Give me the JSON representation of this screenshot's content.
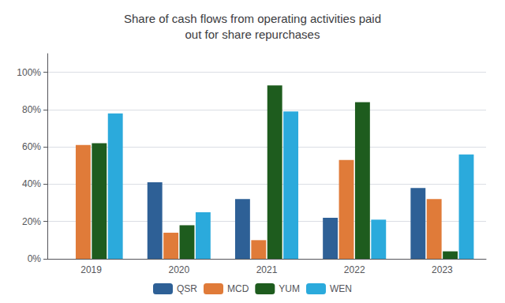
{
  "chart_data": {
    "type": "bar",
    "title": "Share of cash flows from operating activities paid\nout for share repurchases",
    "categories": [
      "2019",
      "2020",
      "2021",
      "2022",
      "2023"
    ],
    "series": [
      {
        "name": "QSR",
        "color": "#2e6096",
        "values": [
          0,
          41,
          32,
          22,
          38
        ]
      },
      {
        "name": "MCD",
        "color": "#e07b39",
        "values": [
          61,
          14,
          10,
          53,
          32
        ]
      },
      {
        "name": "YUM",
        "color": "#1e5c1e",
        "values": [
          62,
          18,
          93,
          84,
          4
        ]
      },
      {
        "name": "WEN",
        "color": "#2baadc",
        "values": [
          78,
          25,
          79,
          21,
          56
        ]
      }
    ],
    "ylim": [
      0,
      110
    ],
    "yticks": [
      {
        "value": 0,
        "label": "0%"
      },
      {
        "value": 20,
        "label": "20%"
      },
      {
        "value": 40,
        "label": "40%"
      },
      {
        "value": 60,
        "label": "60%"
      },
      {
        "value": 80,
        "label": "80%"
      },
      {
        "value": 100,
        "label": "100%"
      }
    ],
    "grid": true,
    "legend": "bottom"
  }
}
